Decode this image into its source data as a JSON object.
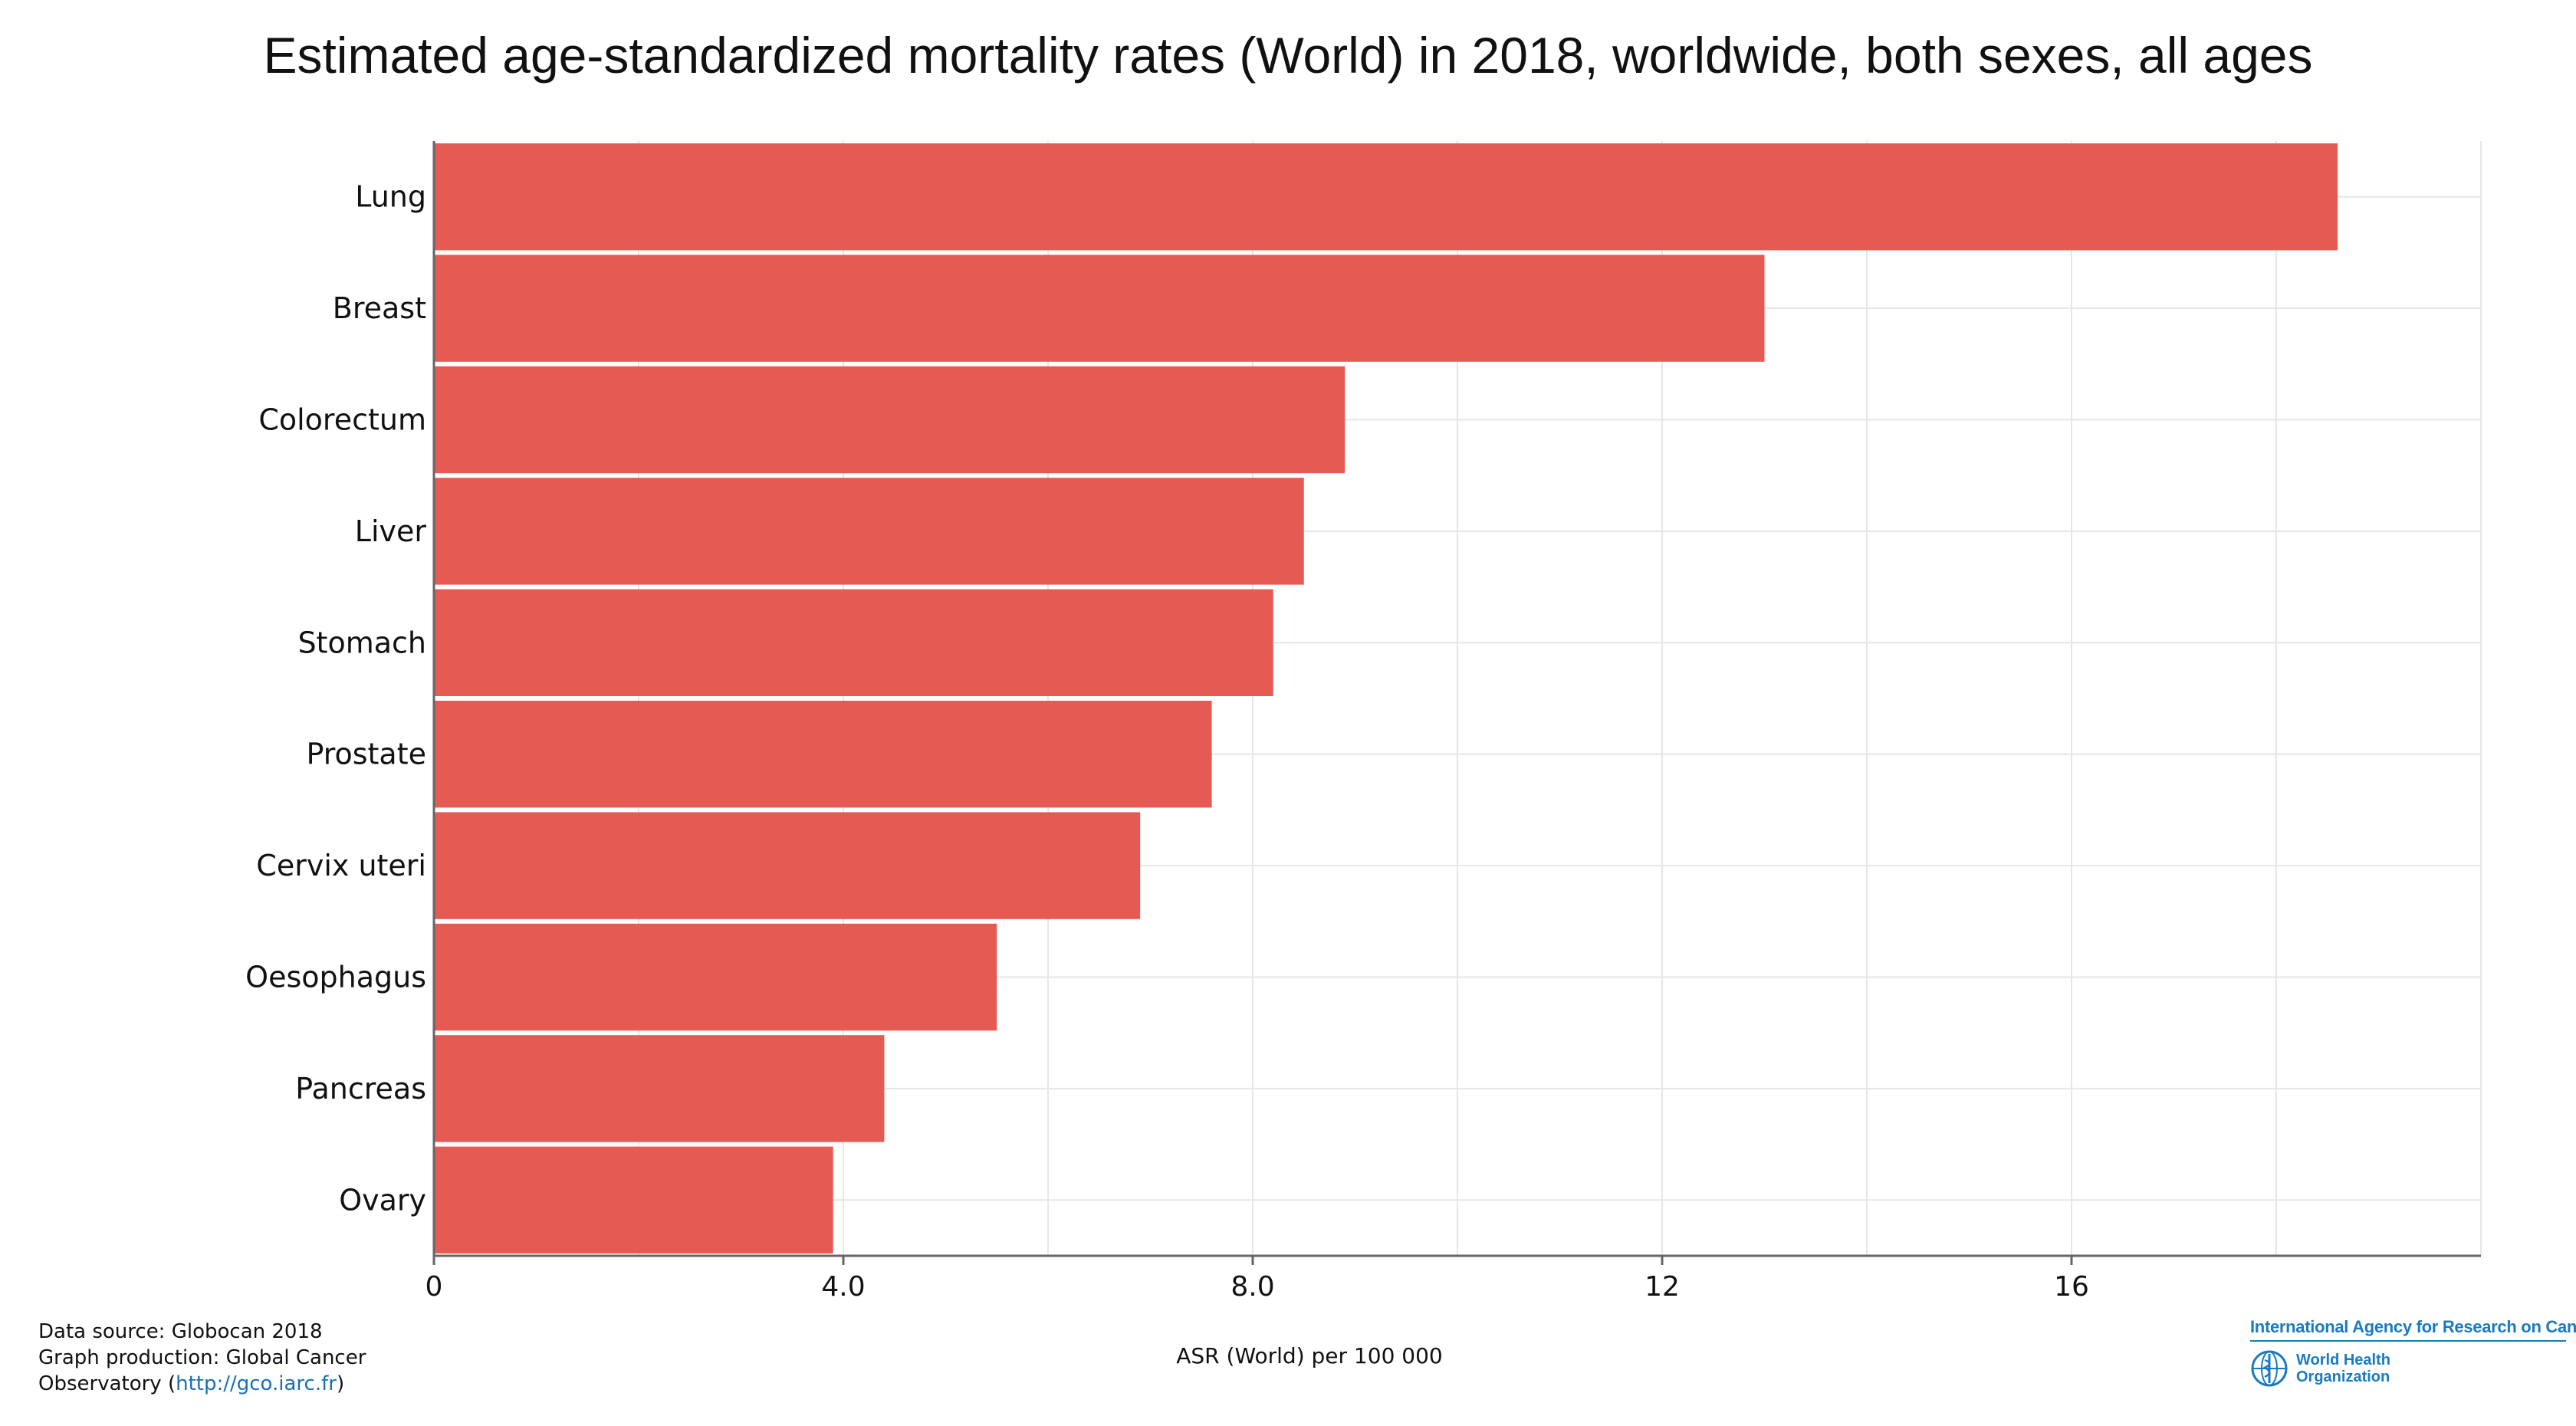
{
  "chart_data": {
    "type": "bar",
    "orientation": "horizontal",
    "title": "Estimated age-standardized mortality rates (World) in 2018, worldwide, both sexes, all ages",
    "xlabel": "ASR (World) per 100 000",
    "ylabel": "",
    "categories": [
      "Lung",
      "Breast",
      "Colorectum",
      "Liver",
      "Stomach",
      "Prostate",
      "Cervix uteri",
      "Oesophagus",
      "Pancreas",
      "Ovary"
    ],
    "values": [
      18.6,
      13.0,
      8.9,
      8.5,
      8.2,
      7.6,
      6.9,
      5.5,
      4.4,
      3.9
    ],
    "xlim": [
      0,
      20
    ],
    "xticks": [
      0,
      4,
      8,
      12,
      16
    ],
    "xtick_labels": [
      "0",
      "4.0",
      "8.0",
      "12",
      "16"
    ],
    "grid": true,
    "bar_color": "#e55b54"
  },
  "footer": {
    "line1": "Data source: Globocan 2018",
    "line2": "Graph production: Global Cancer",
    "line3_prefix": "Observatory (",
    "link": "http://gco.iarc.fr",
    "line3_suffix": ")"
  },
  "logos": {
    "iarc": "International Agency for Research on Cancer",
    "who_line1": "World Health",
    "who_line2": "Organization",
    "color": "#1a7bbf"
  }
}
